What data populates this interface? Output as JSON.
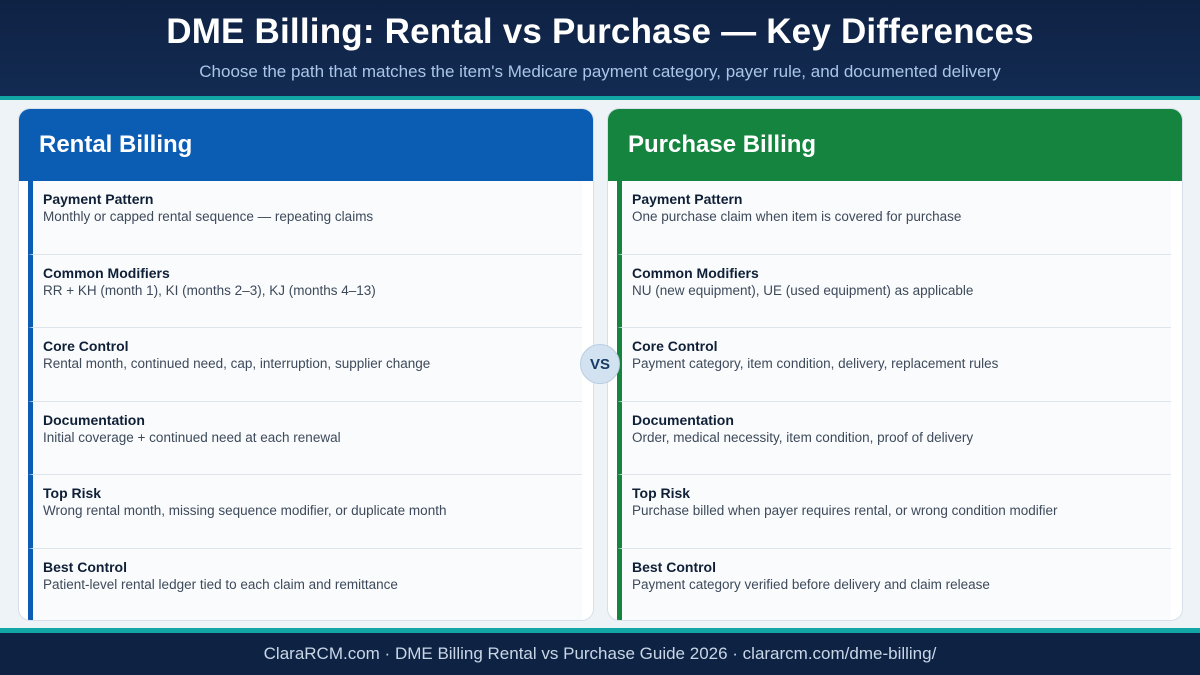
{
  "header": {
    "title": "DME Billing: Rental vs Purchase — Key Differences",
    "subtitle": "Choose the path that matches the item's Medicare payment category, payer rule, and documented delivery"
  },
  "vs_label": "VS",
  "rental": {
    "title": "Rental Billing",
    "color": "#0b5cb3",
    "rows": [
      {
        "label": "Payment Pattern",
        "desc": "Monthly or capped rental sequence — repeating claims"
      },
      {
        "label": "Common Modifiers",
        "desc": "RR + KH (month 1), KI (months 2–3), KJ (months 4–13)"
      },
      {
        "label": "Core Control",
        "desc": "Rental month, continued need, cap, interruption, supplier change"
      },
      {
        "label": "Documentation",
        "desc": "Initial coverage + continued need at each renewal"
      },
      {
        "label": "Top Risk",
        "desc": "Wrong rental month, missing sequence modifier, or duplicate month"
      },
      {
        "label": "Best Control",
        "desc": "Patient-level rental ledger tied to each claim and remittance"
      }
    ]
  },
  "purchase": {
    "title": "Purchase Billing",
    "color": "#14843f",
    "rows": [
      {
        "label": "Payment Pattern",
        "desc": "One purchase claim when item is covered for purchase"
      },
      {
        "label": "Common Modifiers",
        "desc": "NU (new equipment), UE (used equipment) as applicable"
      },
      {
        "label": "Core Control",
        "desc": "Payment category, item condition, delivery, replacement rules"
      },
      {
        "label": "Documentation",
        "desc": "Order, medical necessity, item condition, proof of delivery"
      },
      {
        "label": "Top Risk",
        "desc": "Purchase billed when payer requires rental, or wrong condition modifier"
      },
      {
        "label": "Best Control",
        "desc": "Payment category verified before delivery and claim release"
      }
    ]
  },
  "footer": {
    "text": "ClaraRCM.com · DME Billing Rental vs Purchase Guide 2026 · clararcm.com/dme-billing/"
  }
}
